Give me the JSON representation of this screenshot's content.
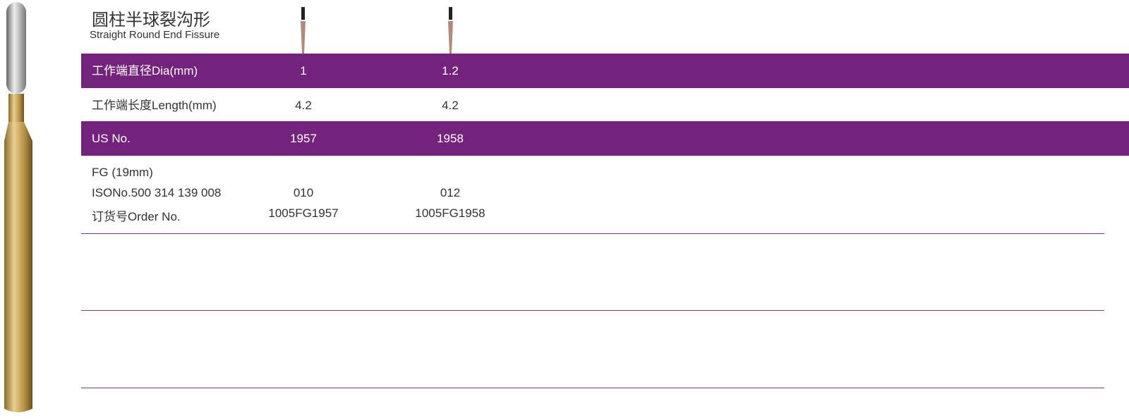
{
  "header": {
    "title": "圆柱半球裂沟形",
    "subtitle": "Straight Round End Fissure"
  },
  "table": {
    "rows": [
      [
        "工作端直径Dia(mm)",
        "1",
        "1.2"
      ],
      [
        "工作端长度Length(mm)",
        "4.2",
        "4.2"
      ],
      [
        "US No.",
        "1957",
        "1958"
      ]
    ],
    "order": {
      "labels": [
        "FG (19mm)",
        "ISONo.500 314 139 008",
        "订货号Order No."
      ],
      "columns": [
        [
          "010",
          "1005FG1957"
        ],
        [
          "012",
          "1005FG1958"
        ]
      ]
    }
  }
}
